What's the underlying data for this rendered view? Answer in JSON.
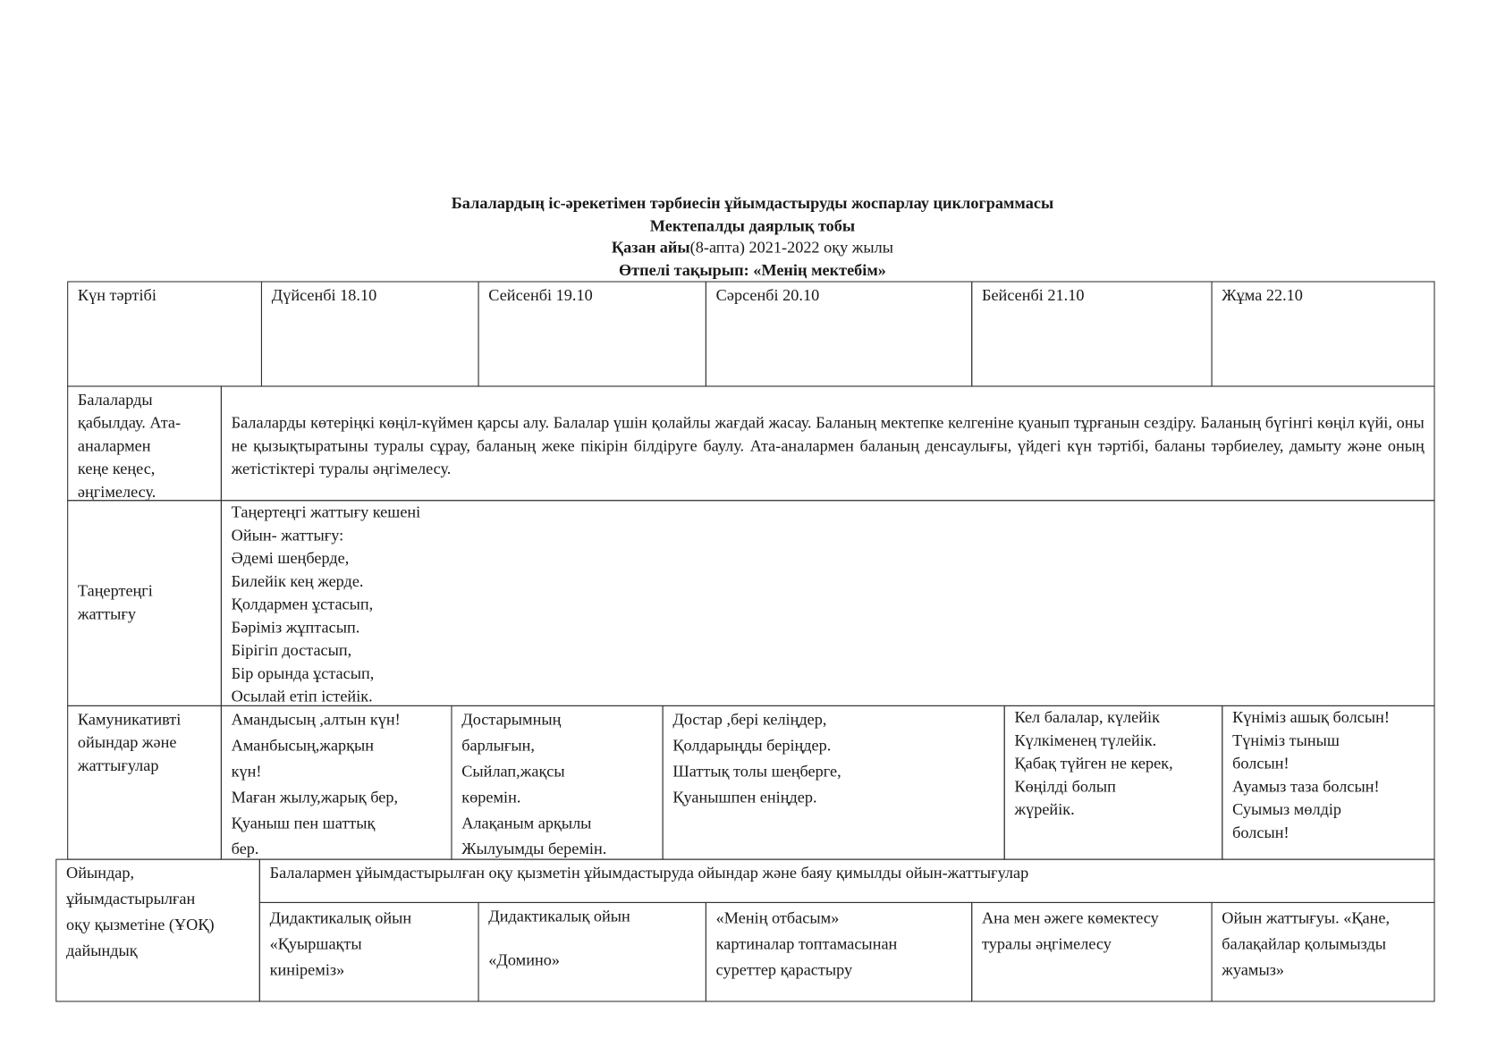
{
  "title": {
    "line1": "Балалардың іс-әрекетімен тәрбиесін ұйымдастыруды жоспарлау циклограммасы",
    "line2": "Мектепалды  даярлық  тобы",
    "line3_bold": "Қазан айы",
    "line3_rest": "(8-апта) 2021-2022 оқу жылы",
    "line4": "Өтпелі  тақырып: «Менің мектебім»"
  },
  "header": [
    "Күн тәртібі",
    "Дүйсенбі 18.10",
    "Сейсенбі 19.10",
    "Сәрсенбі 20.10",
    "Бейсенбі 21.10",
    "Жұма 22.10"
  ],
  "rows": {
    "reception": {
      "label": "Балаларды\nқабылдау. Ата-\nаналармен\nкеңе  кеңес,\nәңгімелесу.",
      "content": "Балаларды көтеріңкі көңіл-күймен қарсы алу. Балалар үшін қолайлы жағдай жасау. Баланың мектепке келгеніне қуанып тұрғанын сездіру. Баланың бүгінгі көңіл күйі, оны не қызықтыратыны туралы сұрау, баланың жеке пікірін білдіруге баулу. Ата-аналармен баланың денсаулығы, үйдегі күн тәртібі, баланы тәрбиелеу, дамыту және оның жетістіктері туралы әңгімелесу."
    },
    "exercise": {
      "label": "Таңертеңгі\nжаттығу",
      "content": "Таңертеңгі жаттығу кешені\nОйын- жаттығу:\nӘдемі шеңберде,\nБилейік кең жерде.\nҚолдармен ұстасып,\nБәріміз жұптасып.\nБірігіп достасып,\nБір орында ұстасып,\nОсылай етіп істейік."
    },
    "communicative": {
      "label": "Камуникативті\nойындар және\nжаттығулар",
      "cells": [
        "Амандысың ,алтын күн!\nАманбысың,жарқын\nкүн!\nМаған жылу,жарық бер,\nҚуаныш пен шаттық\nбер.",
        "Достарымның\nбарлығын,\nСыйлап,жақсы\nкөремін.\nАлақаным арқылы\nЖылуымды беремін.",
        "Достар ,бері келіңдер,\nҚолдарыңды беріңдер.\nШаттық толы шеңберге,\nҚуанышпен еніңдер.",
        "Кел балалар, күлейік\nКүлкіменең түлейік.\nҚабақ түйген не керек,\nКөңілді болып\nжүрейік.",
        "Күніміз ашық болсын!\nТүніміз тыныш\nболсын!\nАуамыз таза болсын!\nСуымыз мөлдір\nболсын!"
      ]
    },
    "games": {
      "label": "Ойындар,\nұйымдастырылған\nоқу қызметіне (ҰОҚ)\nдайындық",
      "subheader": "Балалармен ұйымдастырылған оқу қызметін ұйымдастыруда  ойындар және баяу қимылды ойын-жаттығулар",
      "cells": [
        "Дидактикалық ойын\n«Қуыршақты\nкиніреміз»",
        "Дидактикалық ойын\n\n«Домино»",
        "«Менің отбасым»\nкартиналар топтамасынан\nсуреттер қарастыру",
        "Ана мен әжеге көмектесу\nтуралы әңгімелесу",
        "Ойын жаттығуы. «Қане,\nбалақайлар қолымызды\nжуамыз»"
      ]
    }
  }
}
